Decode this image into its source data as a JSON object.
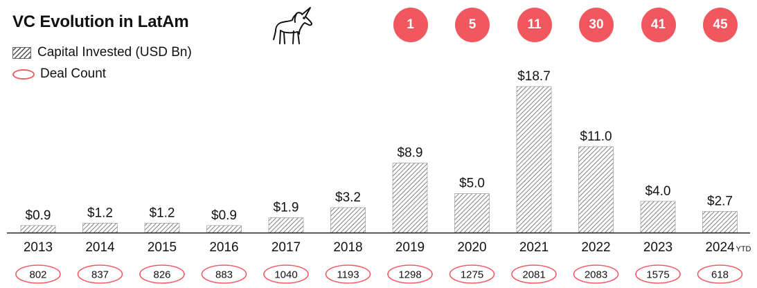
{
  "title": "VC Evolution in LatAm",
  "legend": {
    "capital_label": "Capital Invested (USD Bn)",
    "deals_label": "Deal Count"
  },
  "unicorns": {
    "icon": "unicorn-icon",
    "counts": [
      "1",
      "5",
      "11",
      "30",
      "41",
      "45"
    ]
  },
  "colors": {
    "accent": "#f0575e",
    "ellipse_stroke": "#ef5b63",
    "hatch": "#4a4a4a",
    "axis": "#222222"
  },
  "chart_data": {
    "type": "bar",
    "categories": [
      "2013",
      "2014",
      "2015",
      "2016",
      "2017",
      "2018",
      "2019",
      "2020",
      "2021",
      "2022",
      "2023",
      "2024"
    ],
    "category_suffix": {
      "2024": "YTD"
    },
    "series": [
      {
        "name": "Capital Invested (USD Bn)",
        "values": [
          0.9,
          1.2,
          1.2,
          0.9,
          1.9,
          3.2,
          8.9,
          5.0,
          18.7,
          11.0,
          4.0,
          2.7
        ],
        "labels": [
          "$0.9",
          "$1.2",
          "$1.2",
          "$0.9",
          "$1.9",
          "$3.2",
          "$8.9",
          "$5.0",
          "$18.7",
          "$11.0",
          "$4.0",
          "$2.7"
        ]
      },
      {
        "name": "Deal Count",
        "values": [
          802,
          837,
          826,
          883,
          1040,
          1193,
          1298,
          1275,
          2081,
          2083,
          1575,
          618
        ]
      }
    ],
    "ylim": [
      0,
      18.7
    ],
    "grid": false,
    "legend_position": "top-left"
  }
}
